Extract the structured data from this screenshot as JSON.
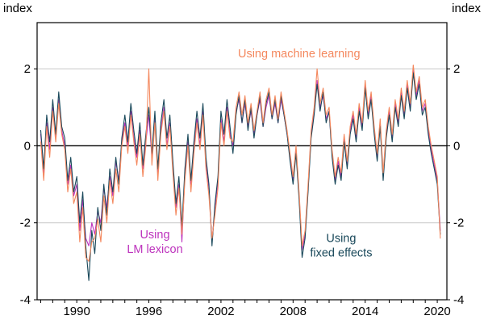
{
  "chart_data": {
    "type": "line",
    "title": "",
    "ylabel_left": "index",
    "ylabel_right": "index",
    "x_start": 1987.0,
    "x_step": 0.25,
    "x_domain": [
      1986.7,
      2020.8
    ],
    "y_domain": [
      -4,
      3.2
    ],
    "y_gridlines": [
      2,
      -2
    ],
    "y_zero_line": 0,
    "y_tick_labels": [
      2,
      0,
      -2,
      -4
    ],
    "x_tick_labels": [
      1990,
      1996,
      2002,
      2008,
      2014,
      2020
    ],
    "x_minor_ticks_every": 1,
    "grid_color": "#c9c9c9",
    "axis_color": "#000000",
    "series": [
      {
        "name": "Using LM lexicon",
        "color": "#bd33bd",
        "values": [
          0.3,
          -0.7,
          0.6,
          -0.1,
          1.0,
          0.2,
          1.2,
          0.4,
          0.0,
          -1.0,
          -0.5,
          -1.3,
          -1.0,
          -2.2,
          -1.4,
          -2.4,
          -2.6,
          -2.0,
          -2.3,
          -1.7,
          -2.0,
          -1.1,
          -1.6,
          -0.8,
          -1.3,
          -0.4,
          -0.9,
          0.1,
          0.6,
          0.0,
          0.9,
          0.2,
          -0.3,
          0.4,
          -0.6,
          0.1,
          0.8,
          -0.3,
          0.7,
          -0.7,
          0.4,
          1.0,
          0.0,
          0.6,
          -0.5,
          -1.6,
          -1.0,
          -2.5,
          -0.7,
          0.1,
          -1.0,
          0.0,
          0.7,
          0.0,
          0.9,
          -0.4,
          -1.1,
          -2.5,
          -1.6,
          -0.9,
          0.7,
          0.1,
          1.0,
          0.3,
          0.0,
          0.9,
          1.2,
          0.6,
          1.1,
          0.5,
          0.9,
          0.3,
          0.8,
          1.2,
          0.5,
          1.0,
          1.3,
          0.7,
          1.1,
          0.6,
          1.2,
          0.8,
          0.3,
          -0.3,
          -0.9,
          -0.1,
          -1.3,
          -2.7,
          -2.3,
          -1.1,
          0.3,
          0.9,
          1.7,
          1.0,
          1.3,
          0.7,
          0.9,
          -0.2,
          -0.9,
          -0.4,
          -0.8,
          0.2,
          -0.5,
          0.4,
          0.8,
          0.2,
          1.0,
          0.5,
          1.6,
          0.8,
          1.3,
          0.4,
          -0.3,
          0.6,
          -0.8,
          0.3,
          0.9,
          0.2,
          1.1,
          0.6,
          1.4,
          0.8,
          1.6,
          1.0,
          2.0,
          1.3,
          1.7,
          0.9,
          1.1,
          0.4,
          -0.1,
          -0.5,
          -0.9,
          -2.2
        ]
      },
      {
        "name": "Using fixed effects",
        "color": "#19485a",
        "values": [
          0.4,
          -0.6,
          0.8,
          0.1,
          1.2,
          0.3,
          1.4,
          0.5,
          0.2,
          -0.9,
          -0.3,
          -1.2,
          -0.8,
          -2.0,
          -1.2,
          -2.6,
          -3.5,
          -2.2,
          -2.8,
          -1.6,
          -2.2,
          -1.0,
          -1.8,
          -0.6,
          -1.2,
          -0.3,
          -1.0,
          0.2,
          0.8,
          0.1,
          1.1,
          0.4,
          -0.2,
          0.6,
          -0.5,
          0.3,
          1.0,
          -0.2,
          0.9,
          -0.6,
          0.6,
          1.2,
          0.2,
          0.8,
          -0.4,
          -1.5,
          -0.8,
          -2.1,
          -0.6,
          0.3,
          -0.9,
          0.1,
          0.9,
          0.2,
          1.1,
          -0.3,
          -1.0,
          -2.6,
          -1.5,
          -0.8,
          0.9,
          0.3,
          1.2,
          0.5,
          -0.2,
          0.8,
          1.3,
          0.6,
          1.2,
          0.4,
          1.0,
          0.2,
          0.8,
          1.3,
          0.5,
          1.1,
          1.4,
          0.7,
          1.2,
          0.6,
          1.3,
          0.8,
          0.3,
          -0.4,
          -1.0,
          -0.2,
          -1.4,
          -2.9,
          -2.4,
          -1.2,
          0.2,
          0.8,
          1.6,
          0.9,
          1.4,
          0.6,
          0.9,
          -0.3,
          -1.0,
          -0.5,
          -0.9,
          0.1,
          -0.6,
          0.3,
          0.7,
          0.1,
          0.9,
          0.4,
          1.5,
          0.7,
          1.2,
          0.3,
          -0.4,
          0.5,
          -0.9,
          0.2,
          0.8,
          0.1,
          1.0,
          0.5,
          1.3,
          0.7,
          1.5,
          0.9,
          1.9,
          1.2,
          1.6,
          0.8,
          1.0,
          0.3,
          -0.2,
          -0.6,
          -1.0,
          -2.3
        ]
      },
      {
        "name": "Using machine learning",
        "color": "#f4885e",
        "values": [
          0.1,
          -0.9,
          0.5,
          -0.3,
          0.9,
          0.1,
          1.1,
          0.3,
          -0.1,
          -1.2,
          -0.6,
          -1.5,
          -1.2,
          -2.5,
          -1.6,
          -2.9,
          -3.0,
          -2.5,
          -2.4,
          -1.9,
          -2.5,
          -1.3,
          -2.0,
          -0.9,
          -1.5,
          -0.6,
          -1.2,
          0.0,
          0.5,
          -0.2,
          0.8,
          0.1,
          -0.5,
          0.3,
          -0.8,
          0.0,
          2.0,
          -0.5,
          0.6,
          -0.9,
          0.3,
          0.9,
          -0.1,
          0.5,
          -0.7,
          -1.8,
          -1.1,
          -2.3,
          -0.9,
          0.0,
          -1.2,
          -0.2,
          0.6,
          -0.1,
          0.8,
          -0.6,
          -1.3,
          -2.4,
          -1.8,
          -1.1,
          0.6,
          0.0,
          0.9,
          0.2,
          0.1,
          1.0,
          1.4,
          0.8,
          1.3,
          0.6,
          1.1,
          0.4,
          0.9,
          1.4,
          0.6,
          1.2,
          1.5,
          0.8,
          1.3,
          0.7,
          1.4,
          0.9,
          0.4,
          -0.2,
          -0.8,
          0.0,
          -1.2,
          -2.6,
          -2.2,
          -1.0,
          0.4,
          1.0,
          2.0,
          1.1,
          1.5,
          0.8,
          1.0,
          -0.1,
          -0.8,
          -0.3,
          -0.7,
          0.3,
          -0.4,
          0.5,
          0.9,
          0.3,
          1.1,
          0.6,
          1.7,
          0.9,
          1.4,
          0.5,
          -0.2,
          0.7,
          -0.7,
          0.4,
          1.0,
          0.3,
          1.2,
          0.7,
          1.5,
          0.9,
          1.7,
          1.1,
          2.1,
          1.4,
          1.8,
          1.0,
          1.2,
          0.5,
          0.0,
          -0.4,
          -0.8,
          -2.4
        ]
      }
    ],
    "annotations": [
      {
        "name": "annotation-machine-learning",
        "text_lines": [
          "Using machine learning"
        ],
        "x": 2008.5,
        "y": 2.3,
        "color": "#f4885e"
      },
      {
        "name": "annotation-lm-lexicon",
        "text_lines": [
          "Using",
          "LM lexicon"
        ],
        "x": 1996.5,
        "y": -2.4,
        "color": "#bd33bd"
      },
      {
        "name": "annotation-fixed-effects",
        "text_lines": [
          "Using",
          "fixed effects"
        ],
        "x": 2012.0,
        "y": -2.5,
        "color": "#19485a"
      }
    ]
  }
}
